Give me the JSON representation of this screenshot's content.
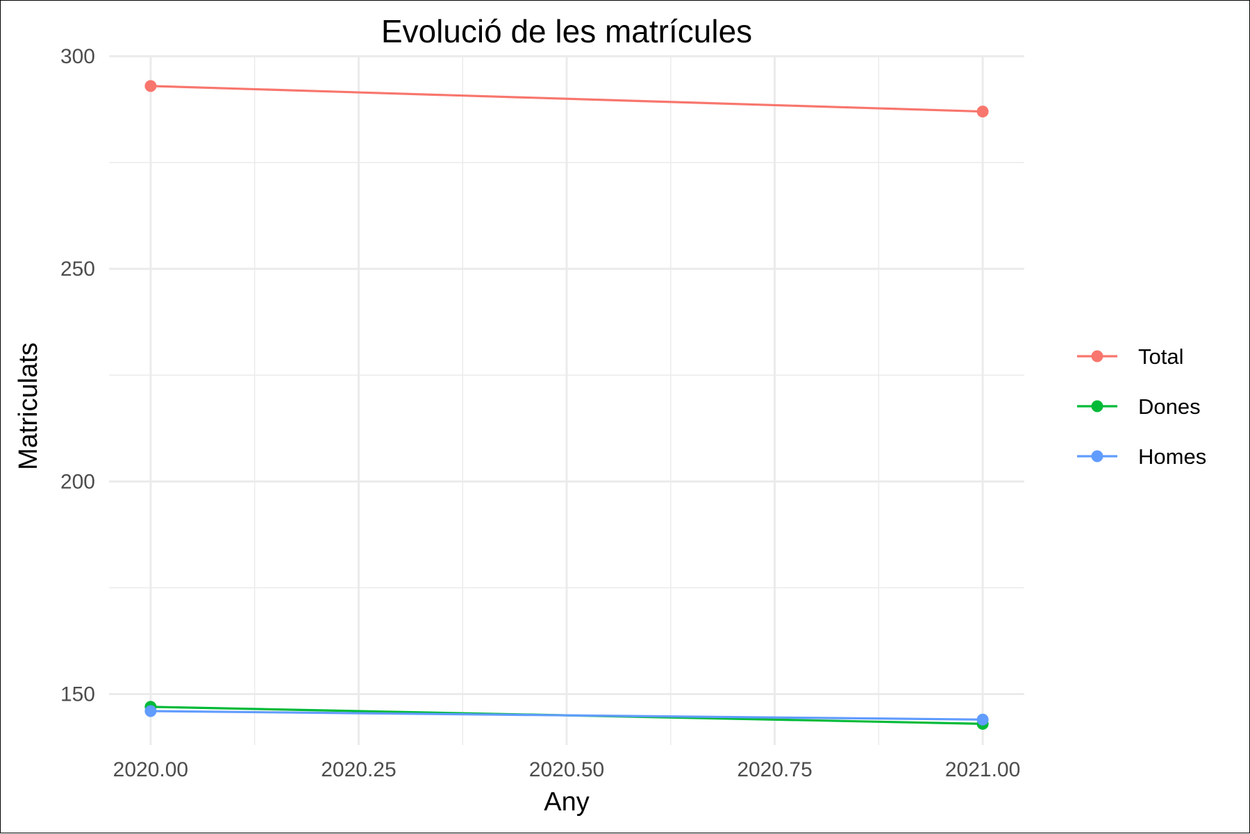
{
  "chart_data": {
    "type": "line",
    "title": "Evolució de les matrícules",
    "xlabel": "Any",
    "ylabel": "Matriculats",
    "x": [
      2020,
      2021
    ],
    "xlim": [
      2019.95,
      2021.05
    ],
    "ylim": [
      138,
      300
    ],
    "x_ticks": [
      2020.0,
      2020.25,
      2020.5,
      2020.75,
      2021.0
    ],
    "x_tick_labels": [
      "2020.00",
      "2020.25",
      "2020.50",
      "2020.75",
      "2021.00"
    ],
    "x_minor_ticks": [
      2020.125,
      2020.375,
      2020.625,
      2020.875
    ],
    "y_ticks": [
      150,
      200,
      250,
      300
    ],
    "y_tick_labels": [
      "150",
      "200",
      "250",
      "300"
    ],
    "y_minor_ticks": [
      175,
      225,
      275
    ],
    "grid": true,
    "legend_position": "right",
    "series": [
      {
        "name": "Total",
        "color": "#F8766D",
        "values": [
          293,
          287
        ]
      },
      {
        "name": "Dones",
        "color": "#00BA38",
        "values": [
          147,
          143
        ]
      },
      {
        "name": "Homes",
        "color": "#619CFF",
        "values": [
          146,
          144
        ]
      }
    ]
  }
}
